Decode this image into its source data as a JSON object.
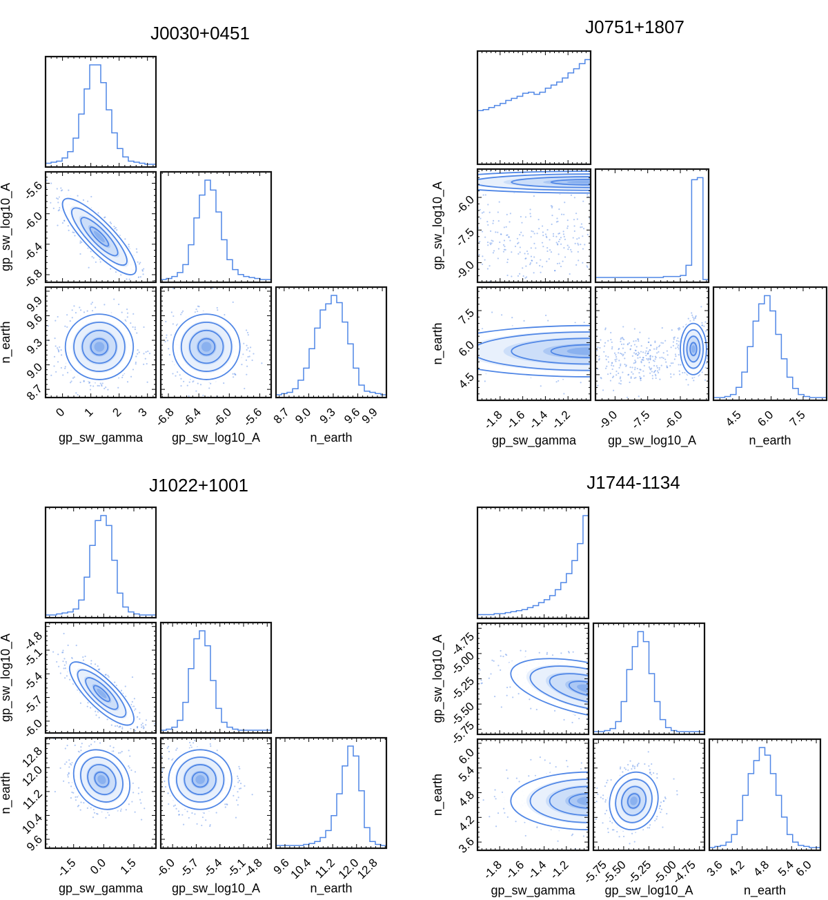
{
  "chart_data": [
    {
      "type": "corner",
      "title": "J0030+0451",
      "color": "#4f86e6",
      "params": [
        {
          "label": "gp_sw_gamma",
          "range": [
            -0.6,
            3.3
          ],
          "ticks": [
            0,
            1,
            2,
            3
          ],
          "tick_labels": [
            "0",
            "1",
            "2",
            "3"
          ],
          "hist": [
            1,
            2,
            3,
            6,
            12,
            25,
            48,
            72,
            95,
            95,
            78,
            52,
            30,
            15,
            7,
            3,
            2,
            1,
            0,
            0
          ]
        },
        {
          "label": "gp_sw_log10_A",
          "range": [
            -6.9,
            -5.45
          ],
          "ticks": [
            -6.8,
            -6.4,
            -6.0,
            -5.6
          ],
          "tick_labels": [
            "-6.8",
            "-6.4",
            "-6.0",
            "-5.6"
          ],
          "hist": [
            0,
            1,
            3,
            7,
            15,
            35,
            62,
            85,
            100,
            90,
            68,
            40,
            20,
            10,
            5,
            3,
            2,
            1,
            0,
            0
          ]
        },
        {
          "label": "n_earth",
          "range": [
            8.6,
            9.95
          ],
          "ticks": [
            8.7,
            9.0,
            9.3,
            9.6,
            9.9
          ],
          "tick_labels": [
            "8.7",
            "9.0",
            "9.3",
            "9.6",
            "9.9"
          ],
          "hist": [
            0,
            1,
            2,
            5,
            12,
            22,
            38,
            55,
            70,
            75,
            82,
            76,
            60,
            42,
            22,
            8,
            3,
            2,
            1,
            0
          ]
        }
      ],
      "pairs": [
        {
          "x": 0,
          "y": 1,
          "components": [
            {
              "w": 1,
              "mean": [
                1.3,
                -6.3
              ],
              "sd": [
                0.65,
                0.25
              ],
              "rho": -0.85
            }
          ]
        },
        {
          "x": 0,
          "y": 2,
          "components": [
            {
              "w": 1,
              "mean": [
                1.3,
                9.22
              ],
              "sd": [
                0.6,
                0.2
              ],
              "rho": 0
            }
          ]
        },
        {
          "x": 1,
          "y": 2,
          "components": [
            {
              "w": 1,
              "mean": [
                -6.3,
                9.22
              ],
              "sd": [
                0.22,
                0.2
              ],
              "rho": 0
            }
          ]
        }
      ]
    },
    {
      "type": "corner",
      "title": "J0751+1807",
      "color": "#4f86e6",
      "params": [
        {
          "label": "gp_sw_gamma",
          "range": [
            -2.0,
            -1.0
          ],
          "ticks": [
            -1.8,
            -1.6,
            -1.4,
            -1.2
          ],
          "tick_labels": [
            "-1.8",
            "-1.6",
            "-1.4",
            "-1.2"
          ],
          "hist": [
            50,
            51,
            53,
            55,
            57,
            60,
            62,
            64,
            67,
            68,
            66,
            68,
            72,
            75,
            78,
            82,
            87,
            91,
            96,
            100
          ]
        },
        {
          "label": "gp_sw_log10_A",
          "range": [
            -9.9,
            -4.7
          ],
          "ticks": [
            -9.0,
            -7.5,
            -6.0
          ],
          "tick_labels": [
            "-9.0",
            "-7.5",
            "-6.0"
          ],
          "hist": [
            2,
            2,
            2,
            2,
            2,
            2,
            2,
            2,
            2,
            2,
            2,
            2,
            3,
            3,
            3,
            4,
            14,
            98,
            100,
            0
          ]
        },
        {
          "label": "n_earth",
          "range": [
            3.3,
            8.6
          ],
          "ticks": [
            4.5,
            6.0,
            7.5
          ],
          "tick_labels": [
            "4.5",
            "6.0",
            "7.5"
          ],
          "hist": [
            0,
            0,
            1,
            3,
            10,
            25,
            50,
            75,
            92,
            100,
            85,
            62,
            38,
            20,
            9,
            3,
            1,
            0,
            0,
            0
          ]
        }
      ],
      "pairs": [
        {
          "x": 0,
          "y": 1,
          "components": [
            {
              "w": 0.55,
              "mean": [
                -1.0,
                -5.3
              ],
              "sd": [
                0.7,
                0.25
              ],
              "rho": 0
            },
            {
              "w": 0.45,
              "mean": [
                -1.5,
                -8.2
              ],
              "sd": [
                0.6,
                1.1
              ],
              "rho": 0
            }
          ]
        },
        {
          "x": 0,
          "y": 2,
          "components": [
            {
              "w": 1,
              "mean": [
                -1.0,
                5.6
              ],
              "sd": [
                0.7,
                0.6
              ],
              "rho": 0
            }
          ]
        },
        {
          "x": 1,
          "y": 2,
          "components": [
            {
              "w": 0.7,
              "mean": [
                -5.4,
                5.7
              ],
              "sd": [
                0.3,
                0.6
              ],
              "rho": 0
            },
            {
              "w": 0.3,
              "mean": [
                -8.0,
                5.2
              ],
              "sd": [
                1.3,
                0.6
              ],
              "rho": 0
            }
          ]
        }
      ]
    },
    {
      "type": "corner",
      "title": "J1022+1001",
      "color": "#4f86e6",
      "params": [
        {
          "label": "gp_sw_gamma",
          "range": [
            -2.9,
            2.6
          ],
          "ticks": [
            -1.5,
            0.0,
            1.5
          ],
          "tick_labels": [
            "-1.5",
            "0.0",
            "1.5"
          ],
          "hist": [
            0,
            0,
            1,
            2,
            3,
            6,
            15,
            38,
            70,
            95,
            100,
            90,
            55,
            22,
            8,
            3,
            1,
            0,
            0,
            0
          ]
        },
        {
          "label": "gp_sw_log10_A",
          "range": [
            -6.15,
            -4.75
          ],
          "ticks": [
            -6.0,
            -5.7,
            -5.4,
            -5.1,
            -4.8
          ],
          "tick_labels": [
            "-6.0",
            "-5.7",
            "-5.4",
            "-5.1",
            "-4.8"
          ],
          "hist": [
            0,
            1,
            3,
            10,
            28,
            62,
            92,
            100,
            85,
            50,
            22,
            8,
            3,
            1,
            0,
            0,
            0,
            0,
            0,
            0
          ]
        },
        {
          "label": "n_earth",
          "range": [
            9.3,
            13.0
          ],
          "ticks": [
            9.6,
            10.4,
            11.2,
            12.0,
            12.8
          ],
          "tick_labels": [
            "9.6",
            "10.4",
            "11.2",
            "12.0",
            "12.8"
          ],
          "hist": [
            0,
            0,
            0,
            0,
            0,
            1,
            2,
            4,
            8,
            15,
            30,
            52,
            80,
            100,
            90,
            55,
            18,
            4,
            1,
            0
          ]
        }
      ],
      "pairs": [
        {
          "x": 0,
          "y": 1,
          "components": [
            {
              "w": 1,
              "mean": [
                -0.1,
                -5.65
              ],
              "sd": [
                0.8,
                0.2
              ],
              "rho": -0.8
            }
          ]
        },
        {
          "x": 0,
          "y": 2,
          "components": [
            {
              "w": 1,
              "mean": [
                -0.1,
                11.6
              ],
              "sd": [
                0.7,
                0.5
              ],
              "rho": -0.2
            }
          ]
        },
        {
          "x": 1,
          "y": 2,
          "components": [
            {
              "w": 1,
              "mean": [
                -5.65,
                11.6
              ],
              "sd": [
                0.2,
                0.5
              ],
              "rho": 0
            }
          ]
        }
      ]
    },
    {
      "type": "corner",
      "title": "J1744-1134",
      "color": "#4f86e6",
      "params": [
        {
          "label": "gp_sw_gamma",
          "range": [
            -2.0,
            -1.0
          ],
          "ticks": [
            -1.8,
            -1.6,
            -1.4,
            -1.2
          ],
          "tick_labels": [
            "-1.8",
            "-1.6",
            "-1.4",
            "-1.2"
          ],
          "hist": [
            1,
            1,
            1,
            2,
            2,
            3,
            4,
            5,
            6,
            8,
            10,
            13,
            16,
            20,
            26,
            33,
            42,
            55,
            72,
            100
          ]
        },
        {
          "label": "gp_sw_log10_A",
          "range": [
            -5.8,
            -4.7
          ],
          "ticks": [
            -5.75,
            -5.5,
            -5.25,
            -5.0,
            -4.75
          ],
          "tick_labels": [
            "-5.75",
            "-5.50",
            "-5.25",
            "-5.00",
            "-4.75"
          ],
          "hist": [
            0,
            0,
            1,
            3,
            10,
            30,
            62,
            85,
            100,
            90,
            58,
            30,
            12,
            4,
            1,
            0,
            0,
            0,
            0,
            0
          ]
        },
        {
          "label": "n_earth",
          "range": [
            3.4,
            6.1
          ],
          "ticks": [
            3.6,
            4.2,
            4.8,
            5.4,
            6.0
          ],
          "tick_labels": [
            "3.6",
            "4.2",
            "4.8",
            "5.4",
            "6.0"
          ],
          "hist": [
            0,
            1,
            2,
            5,
            12,
            25,
            48,
            68,
            80,
            92,
            85,
            68,
            48,
            28,
            12,
            5,
            2,
            1,
            0,
            0
          ]
        }
      ],
      "pairs": [
        {
          "x": 0,
          "y": 1,
          "components": [
            {
              "w": 1,
              "mean": [
                -1.0,
                -5.35
              ],
              "sd": [
                0.35,
                0.15
              ],
              "rho": -0.5
            }
          ]
        },
        {
          "x": 0,
          "y": 2,
          "components": [
            {
              "w": 1,
              "mean": [
                -1.0,
                4.6
              ],
              "sd": [
                0.35,
                0.35
              ],
              "rho": 0
            }
          ]
        },
        {
          "x": 1,
          "y": 2,
          "components": [
            {
              "w": 1,
              "mean": [
                -5.4,
                4.6
              ],
              "sd": [
                0.12,
                0.35
              ],
              "rho": 0.1
            }
          ]
        }
      ]
    }
  ]
}
